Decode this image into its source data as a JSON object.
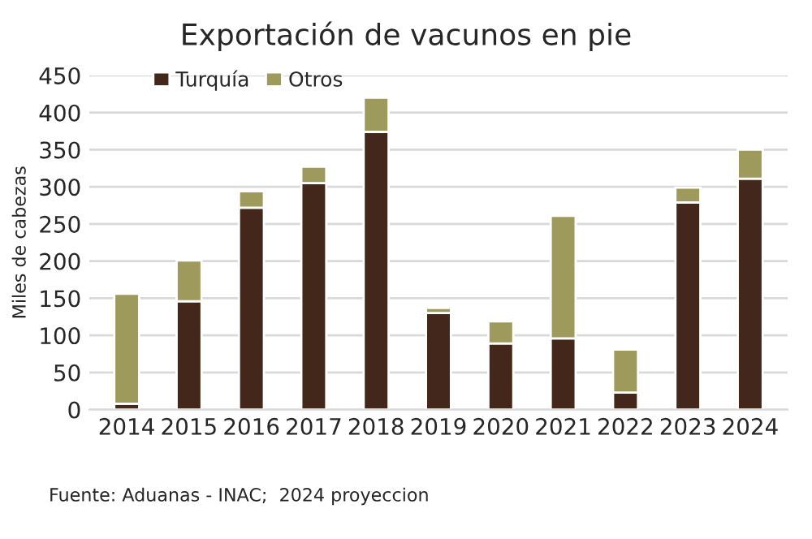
{
  "chart_data": {
    "type": "bar",
    "title": "Exportación de vacunos en pie",
    "ylabel": "Miles de cabezas",
    "categories": [
      "2014",
      "2015",
      "2016",
      "2017",
      "2018",
      "2019",
      "2020",
      "2021",
      "2022",
      "2023",
      "2024"
    ],
    "series": [
      {
        "name": "Turquía",
        "color": "#43271a",
        "values": [
          8,
          146,
          272,
          305,
          374,
          130,
          89,
          96,
          23,
          279,
          311
        ]
      },
      {
        "name": "Otros",
        "color": "#9e9a5c",
        "values": [
          148,
          55,
          22,
          22,
          46,
          7,
          30,
          165,
          58,
          20,
          39
        ]
      }
    ],
    "stacked": true,
    "ylim": [
      0,
      450
    ],
    "yticks": [
      0,
      50,
      100,
      150,
      200,
      250,
      300,
      350,
      400,
      450
    ],
    "grid": "y",
    "legend": "top left",
    "annotations": [
      "Fuente: Aduanas - INAC;  2024 proyeccion"
    ]
  }
}
